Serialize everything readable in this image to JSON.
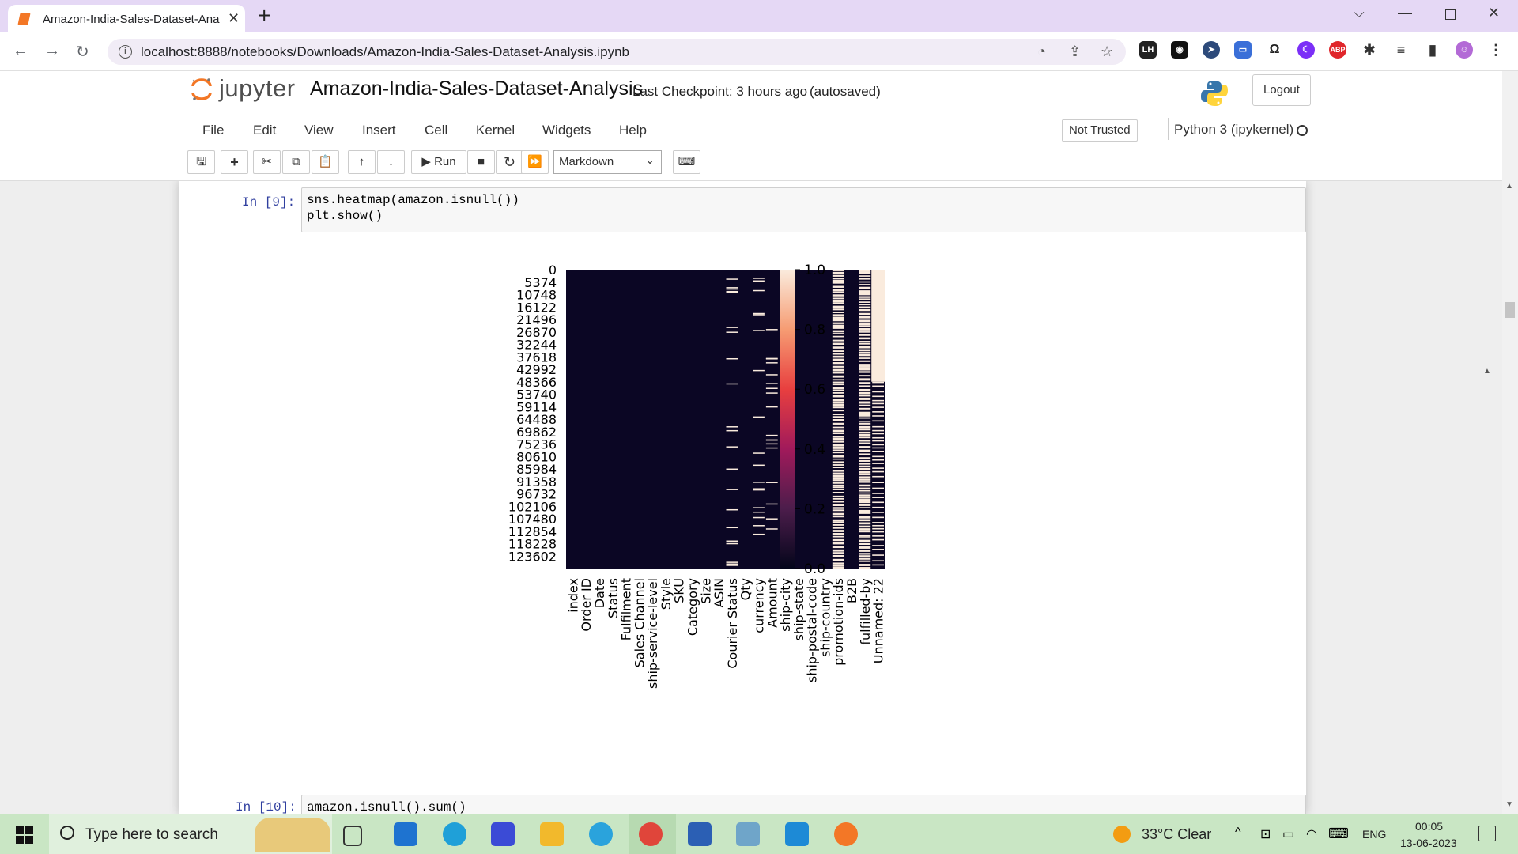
{
  "browser": {
    "tab_title": "Amazon-India-Sales-Dataset-Ana",
    "url": "localhost:8888/notebooks/Downloads/Amazon-India-Sales-Dataset-Analysis.ipynb"
  },
  "jupyter": {
    "logo_text": "jupyter",
    "notebook_title": "Amazon-India-Sales-Dataset-Analysis",
    "checkpoint": "Last Checkpoint: 3 hours ago",
    "autosave": "(autosaved)",
    "logout_label": "Logout",
    "menu": [
      "File",
      "Edit",
      "View",
      "Insert",
      "Cell",
      "Kernel",
      "Widgets",
      "Help"
    ],
    "trust_label": "Not Trusted",
    "kernel_name": "Python 3 (ipykernel)",
    "run_label": "Run",
    "cell_type": "Markdown"
  },
  "cells": [
    {
      "prompt": "In [9]:",
      "code": [
        "sns.heatmap(amazon.isnull())",
        "plt.show()"
      ]
    },
    {
      "prompt": "In [10]:",
      "code": [
        "amazon.isnull().sum()"
      ]
    }
  ],
  "chart_data": {
    "type": "heatmap",
    "columns": [
      "index",
      "Order ID",
      "Date",
      "Status",
      "Fulfilment",
      "Sales Channel",
      "ship-service-level",
      "Style",
      "SKU",
      "Category",
      "Size",
      "ASIN",
      "Courier Status",
      "Qty",
      "currency",
      "Amount",
      "ship-city",
      "ship-state",
      "ship-postal-code",
      "ship-country",
      "promotion-ids",
      "B2B",
      "fulfilled-by",
      "Unnamed: 22"
    ],
    "row_ticks": [
      "0",
      "5374",
      "10748",
      "16122",
      "21496",
      "26870",
      "32244",
      "37618",
      "42992",
      "48366",
      "53740",
      "59114",
      "64488",
      "69862",
      "75236",
      "80610",
      "85984",
      "91358",
      "96732",
      "102106",
      "107480",
      "112854",
      "118228",
      "123602"
    ],
    "row_count": 128976,
    "value_range": [
      0,
      1
    ],
    "colorbar_ticks": [
      "0.0",
      "0.2",
      "0.4",
      "0.6",
      "0.8",
      "1.0"
    ],
    "colormap": "rocket",
    "null_pattern": {
      "Courier Status": "sparse",
      "currency": "sparse",
      "Amount": "sparse",
      "promotion-ids": "frequent",
      "fulfilled-by": "frequent",
      "Unnamed: 22": "all null until about 48366, frequent after"
    }
  },
  "taskbar": {
    "search_placeholder": "Type here to search",
    "weather": "33°C  Clear",
    "language": "ENG",
    "time": "00:05",
    "date": "13-06-2023"
  }
}
